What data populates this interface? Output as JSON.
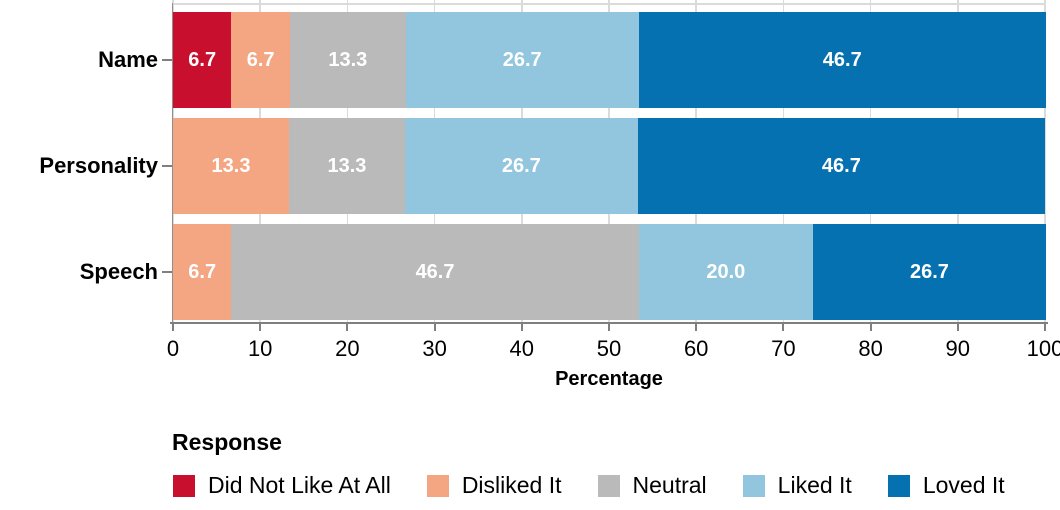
{
  "chart_data": {
    "type": "bar",
    "orientation": "horizontal",
    "stacked": true,
    "categories": [
      "Name",
      "Personality",
      "Speech"
    ],
    "series": [
      {
        "name": "Did Not Like At All",
        "color": "#c8102e",
        "values": [
          6.7,
          0,
          0
        ]
      },
      {
        "name": "Disliked It",
        "color": "#f4a582",
        "values": [
          6.7,
          13.3,
          6.7
        ]
      },
      {
        "name": "Neutral",
        "color": "#bababa",
        "values": [
          13.3,
          13.3,
          46.7
        ]
      },
      {
        "name": "Liked It",
        "color": "#92c5de",
        "values": [
          26.7,
          26.7,
          20.0
        ]
      },
      {
        "name": "Loved It",
        "color": "#0571b0",
        "values": [
          46.7,
          46.7,
          26.7
        ]
      }
    ],
    "bar_labels": [
      [
        "6.7",
        "6.7",
        "13.3",
        "26.7",
        "46.7"
      ],
      [
        "13.3",
        "13.3",
        "26.7",
        "46.7"
      ],
      [
        "6.7",
        "46.7",
        "20.0",
        "26.7"
      ]
    ],
    "xlabel": "Percentage",
    "xlim": [
      0,
      100
    ],
    "x_ticks": [
      0,
      10,
      20,
      30,
      40,
      50,
      60,
      70,
      80,
      90,
      100
    ],
    "grid": "vertical major gridlines, light gray on white",
    "legend_title": "Response",
    "legend_position": "bottom-left",
    "value_label_color": "#ffffff",
    "axis_color": "#7f7f7f",
    "gridline_color": "#dbdbdb"
  }
}
